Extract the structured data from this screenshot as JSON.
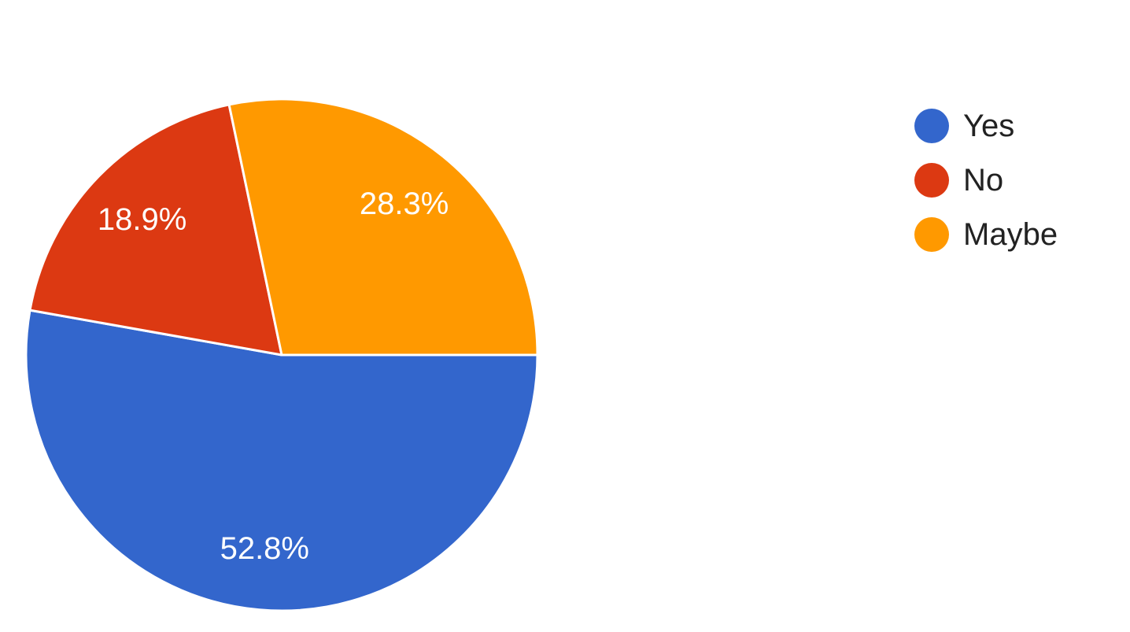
{
  "chart_data": {
    "type": "pie",
    "slices": [
      {
        "label": "Yes",
        "value": 52.8,
        "value_label": "52.8%",
        "color": "#3366cc"
      },
      {
        "label": "No",
        "value": 18.9,
        "value_label": "18.9%",
        "color": "#dc3912"
      },
      {
        "label": "Maybe",
        "value": 28.3,
        "value_label": "28.3%",
        "color": "#ff9900"
      }
    ],
    "legend_position": "right"
  }
}
